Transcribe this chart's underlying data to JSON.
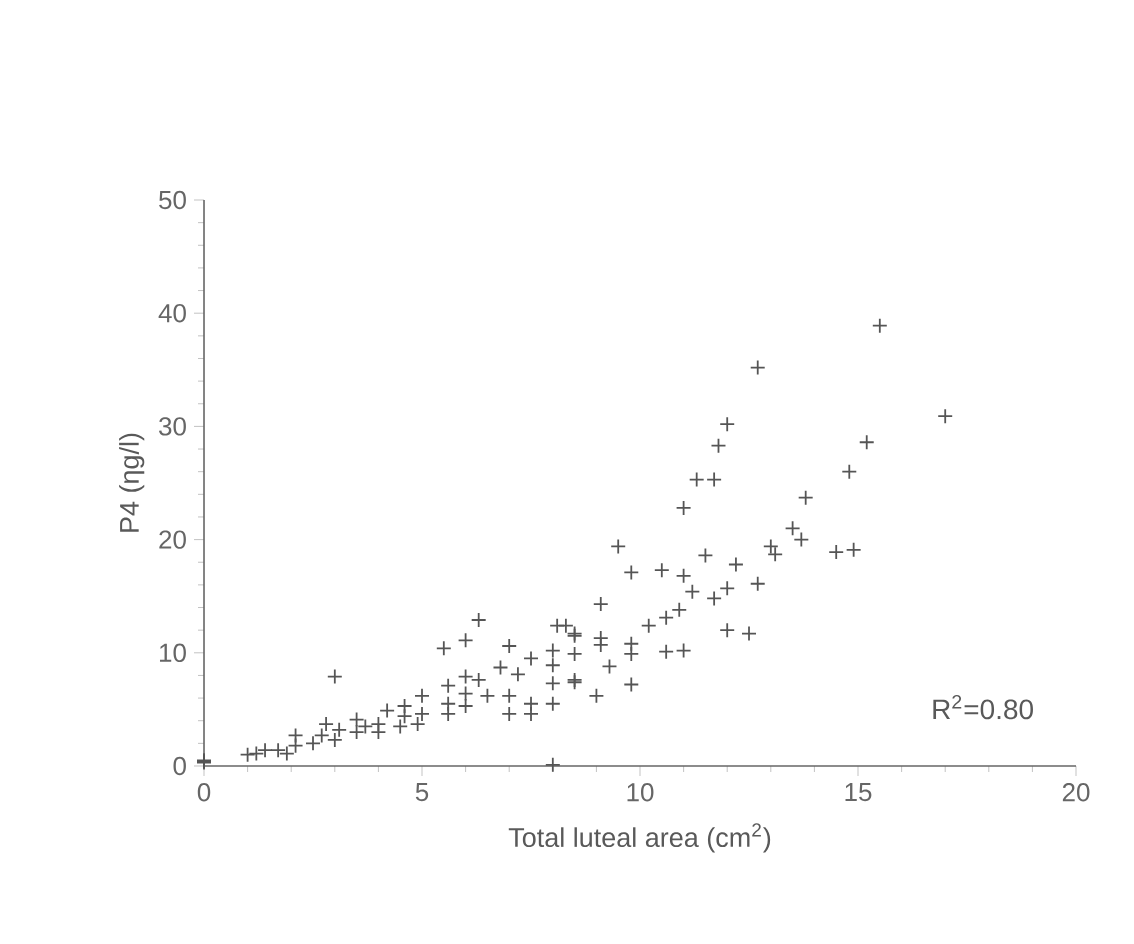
{
  "chart_data": {
    "type": "scatter",
    "xlabel": "Total luteal area (cm$^{2}$)",
    "ylabel": "P4 (ηg/l)",
    "annotations": [
      "R$^{2}$=0.80"
    ],
    "xlim": [
      0,
      20
    ],
    "ylim": [
      0,
      50
    ],
    "xticks": [
      0,
      5,
      10,
      15,
      20
    ],
    "yticks": [
      0,
      10,
      20,
      30,
      40,
      50
    ],
    "marker": "cross",
    "series": [
      {
        "color": "#555555",
        "x": [
          0,
          0,
          0,
          8.0,
          3.0,
          6.3,
          6.0,
          5.5,
          7.0,
          8.1,
          8.5,
          7.5,
          6.8,
          7.2,
          8.0,
          8.0,
          8.0,
          8.0,
          8.5,
          7.5,
          7.5,
          7.0,
          7.0,
          6.5,
          6.0,
          6.0,
          6.0,
          5.6,
          5.6,
          5.6,
          5.0,
          5.0,
          4.9,
          4.6,
          4.2,
          4.0,
          4.0,
          3.5,
          3.5,
          3.1,
          3.0,
          2.7,
          2.5,
          2.1,
          2.1,
          1.7,
          1.4,
          1.2,
          1.0,
          1.9,
          2.8,
          3.7,
          4.5,
          4.6,
          6.3,
          15.5,
          12.7,
          17.0,
          12.0,
          11.8,
          15.2,
          11.3,
          11.7,
          14.8,
          11.0,
          13.8,
          9.5,
          13.5,
          13.7,
          13.0,
          13.1,
          14.5,
          14.9,
          11.5,
          9.8,
          10.5,
          11.0,
          12.2,
          11.2,
          12.0,
          11.7,
          12.7,
          10.9,
          10.6,
          10.2,
          12.0,
          12.5,
          10.6,
          11.0,
          9.8,
          9.8,
          9.1,
          9.1,
          9.1,
          9.3,
          8.5,
          8.5,
          8.5,
          9.0,
          9.8,
          8.3
        ],
        "values": [
          0.4,
          0.5,
          0.3,
          0.1,
          7.9,
          12.9,
          11.1,
          10.4,
          10.6,
          12.4,
          11.5,
          9.5,
          8.7,
          8.1,
          10.2,
          8.9,
          7.3,
          5.5,
          7.6,
          5.5,
          4.6,
          6.2,
          4.6,
          6.2,
          7.9,
          6.4,
          5.3,
          7.1,
          5.5,
          4.6,
          6.2,
          4.6,
          3.7,
          4.4,
          4.9,
          3.7,
          3.0,
          4.1,
          3.0,
          3.2,
          2.3,
          2.7,
          2.0,
          2.7,
          1.8,
          1.4,
          1.4,
          1.1,
          1.0,
          1.1,
          3.7,
          3.5,
          3.5,
          5.3,
          7.6,
          38.9,
          35.2,
          30.9,
          30.2,
          28.3,
          28.6,
          25.3,
          25.3,
          26.0,
          22.8,
          23.7,
          19.4,
          21.0,
          20.0,
          19.4,
          18.7,
          18.9,
          19.1,
          18.6,
          17.1,
          17.3,
          16.8,
          17.8,
          15.4,
          15.7,
          14.8,
          16.1,
          13.8,
          13.1,
          12.4,
          12.0,
          11.7,
          10.1,
          10.2,
          10.8,
          9.9,
          14.3,
          11.3,
          10.7,
          8.8,
          11.7,
          9.9,
          7.4,
          6.2,
          7.2,
          12.4
        ]
      }
    ]
  }
}
